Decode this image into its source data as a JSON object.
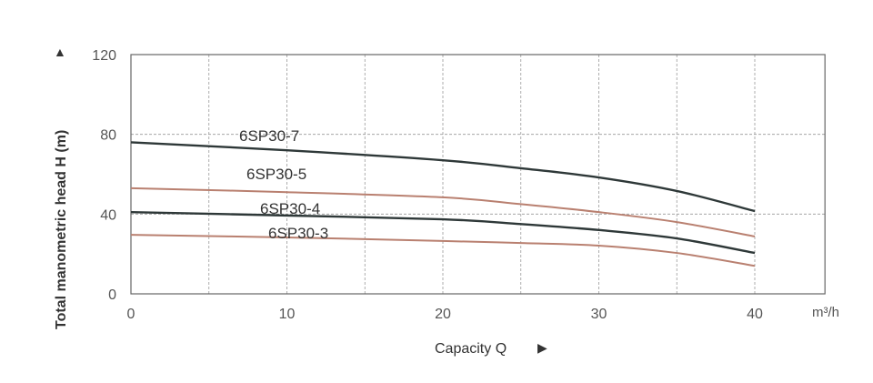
{
  "chart_data": {
    "type": "line",
    "title": "",
    "xlabel": "Capacity Q",
    "xlabel_arrow": "▶",
    "x_unit": "m³/h",
    "ylabel": "Total manometric head H (m)",
    "ylabel_arrow": "▲",
    "xlim": [
      0,
      44.5
    ],
    "ylim": [
      0,
      120
    ],
    "xticks": [
      0,
      10,
      20,
      30,
      40
    ],
    "yticks": [
      0,
      40,
      80,
      120
    ],
    "x_grid_step": 5,
    "grid": true,
    "grid_style": "dashed",
    "x": [
      0,
      10,
      20,
      25,
      30,
      35,
      40
    ],
    "series": [
      {
        "name": "6SP30-7",
        "color": "#2e3838",
        "values": [
          76,
          72,
          67,
          63,
          58.4,
          51.6,
          41.5
        ]
      },
      {
        "name": "6SP30-5",
        "color": "#b98070",
        "values": [
          53,
          51,
          48.4,
          45,
          41,
          36,
          28.8
        ]
      },
      {
        "name": "6SP30-4",
        "color": "#2e3838",
        "values": [
          41,
          39.3,
          37.4,
          35,
          32,
          27.8,
          20.5
        ]
      },
      {
        "name": "6SP30-3",
        "color": "#b98070",
        "values": [
          29.6,
          28.3,
          26.5,
          25.5,
          24.2,
          20.5,
          14
        ]
      }
    ]
  }
}
